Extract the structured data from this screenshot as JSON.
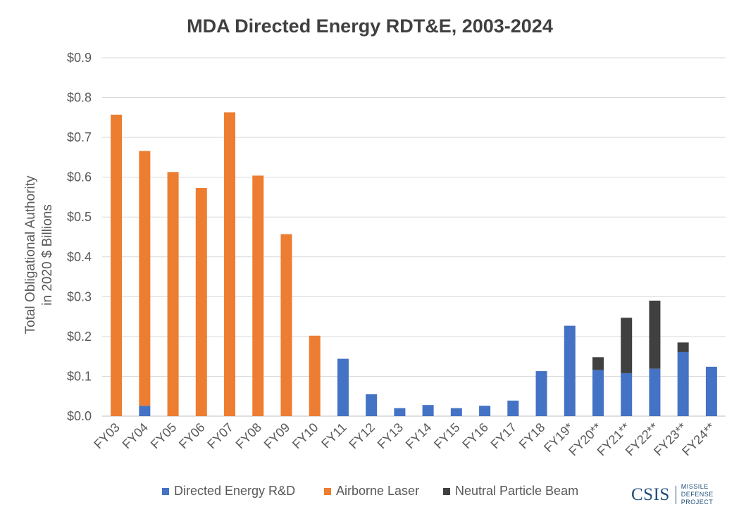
{
  "chart_data": {
    "type": "bar",
    "stacked": true,
    "title": "MDA Directed Energy RDT&E, 2003-2024",
    "ylabel": "Total Obligational Authority in 2020 $ Billions",
    "ylabel_lines": [
      "Total Obligational Authority",
      "in 2020 $ Billions"
    ],
    "xlabel": "",
    "ylim": [
      0,
      0.9
    ],
    "yticks": [
      "$0.0",
      "$0.1",
      "$0.2",
      "$0.3",
      "$0.4",
      "$0.5",
      "$0.6",
      "$0.7",
      "$0.8",
      "$0.9"
    ],
    "grid": true,
    "legend_position": "bottom",
    "categories": [
      "FY03",
      "FY04",
      "FY05",
      "FY06",
      "FY07",
      "FY08",
      "FY09",
      "FY10",
      "FY11",
      "FY12",
      "FY13",
      "FY14",
      "FY15",
      "FY16",
      "FY17",
      "FY18",
      "FY19*",
      "FY20**",
      "FY21**",
      "FY22**",
      "FY23**",
      "FY24**"
    ],
    "series": [
      {
        "name": "Directed Energy R&D",
        "color": "#4472c4",
        "values": [
          0,
          0.026,
          0,
          0,
          0,
          0,
          0,
          0,
          0.144,
          0.055,
          0.02,
          0.028,
          0.02,
          0.026,
          0.039,
          0.113,
          0.227,
          0.116,
          0.108,
          0.119,
          0.161,
          0.124
        ]
      },
      {
        "name": "Airborne Laser",
        "color": "#ed7d31",
        "values": [
          0.757,
          0.64,
          0.613,
          0.573,
          0.763,
          0.604,
          0.457,
          0.202,
          0,
          0,
          0,
          0,
          0,
          0,
          0,
          0,
          0,
          0,
          0,
          0,
          0,
          0
        ]
      },
      {
        "name": "Neutral Particle Beam",
        "color": "#404040",
        "values": [
          0,
          0,
          0,
          0,
          0,
          0,
          0,
          0,
          0,
          0,
          0,
          0,
          0,
          0,
          0,
          0,
          0,
          0.032,
          0.139,
          0.171,
          0.024,
          0
        ]
      }
    ]
  },
  "logo": {
    "name": "CSIS",
    "line1": "MISSILE DEFENSE",
    "line2": "PROJECT"
  }
}
